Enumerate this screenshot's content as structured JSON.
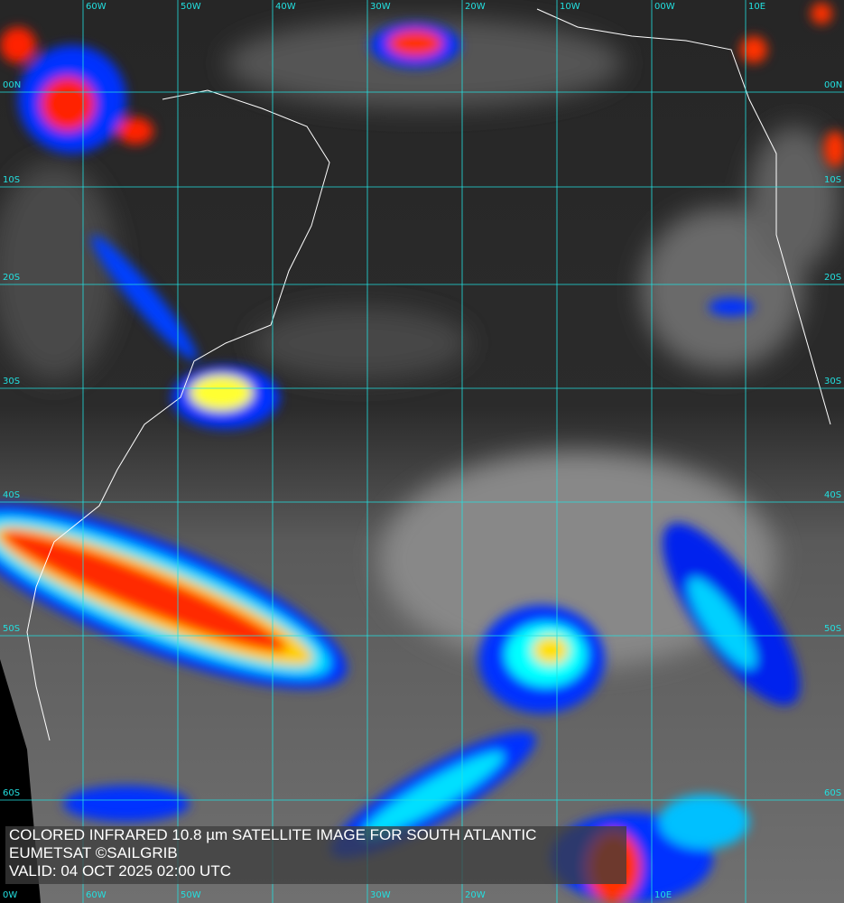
{
  "caption": {
    "line1": "COLORED INFRARED 10.8 µm SATELLITE IMAGE FOR SOUTH ATLANTIC",
    "line2": "EUMETSAT ©SAILGRIB",
    "line3": "VALID:  04 OCT 2025 02:00 UTC"
  },
  "grid": {
    "color": "#22e0e0",
    "longitudes": [
      "60W",
      "50W",
      "40W",
      "30W",
      "20W",
      "10W",
      "00W",
      "10E"
    ],
    "bottom_longitudes": [
      "0W",
      "60W",
      "50W",
      "30W",
      "20W",
      "10E"
    ],
    "latitudes": [
      "00N",
      "10S",
      "20S",
      "30S",
      "40S",
      "50S",
      "60S"
    ]
  },
  "palette": {
    "cold": "#ff2000",
    "mid": "#ffff00",
    "cyan": "#00ffff",
    "blue": "#0020ff",
    "land_outline": "#ffffff"
  }
}
